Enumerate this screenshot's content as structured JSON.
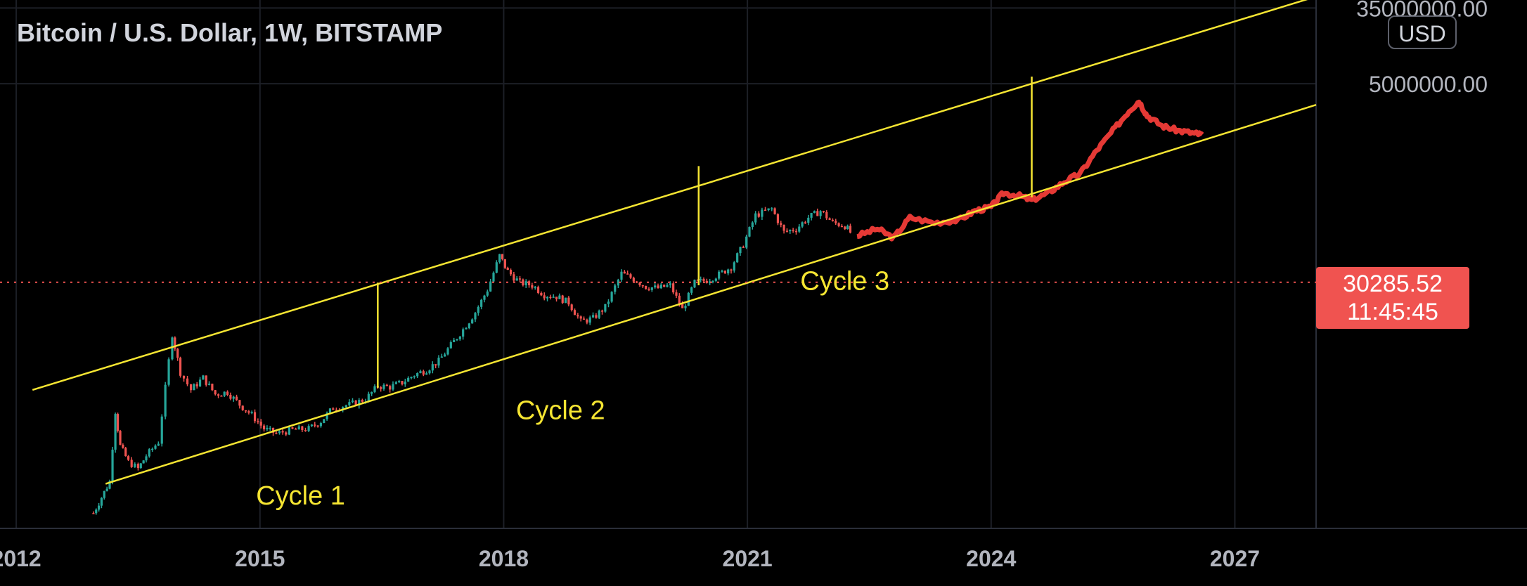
{
  "header": {
    "title": "Bitcoin / U.S. Dollar, 1W, BITSTAMP",
    "currency_badge": "USD"
  },
  "price_scale": {
    "ticks": [
      "35000000.00",
      "5000000.00"
    ]
  },
  "last_price": {
    "value": "30285.52",
    "countdown": "11:45:45"
  },
  "colors": {
    "background": "#000000",
    "grid": "#1c1f26",
    "channel": "#f5e532",
    "candle_up": "#26a69a",
    "candle_down": "#ef5350",
    "projection": "#e53935",
    "price_line": "#f05350",
    "axis_text": "#b2b5be"
  },
  "chart_data": {
    "type": "line",
    "title": "Bitcoin / U.S. Dollar, 1W, BITSTAMP",
    "x_axis": {
      "range": [
        2011.8,
        2028.0
      ],
      "ticks": [
        2012,
        2015,
        2018,
        2021,
        2024,
        2027
      ]
    },
    "y_axis": {
      "scale": "log",
      "range": [
        54,
        43000000
      ],
      "ticks": [
        35000000,
        5000000
      ]
    },
    "current_price": 30285.52,
    "series": [
      {
        "type": "candles",
        "points": [
          [
            2012.95,
            80
          ],
          [
            2013.05,
            120
          ],
          [
            2013.15,
            180
          ],
          [
            2013.22,
            1100
          ],
          [
            2013.28,
            450
          ],
          [
            2013.38,
            300
          ],
          [
            2013.5,
            250
          ],
          [
            2013.6,
            350
          ],
          [
            2013.75,
            500
          ],
          [
            2013.92,
            8000
          ],
          [
            2014.02,
            3000
          ],
          [
            2014.15,
            1900
          ],
          [
            2014.3,
            2600
          ],
          [
            2014.45,
            1700
          ],
          [
            2014.6,
            1800
          ],
          [
            2014.75,
            1300
          ],
          [
            2014.9,
            1000
          ],
          [
            2015.05,
            700
          ],
          [
            2015.2,
            620
          ],
          [
            2015.4,
            680
          ],
          [
            2015.6,
            700
          ],
          [
            2015.75,
            850
          ],
          [
            2015.9,
            1200
          ],
          [
            2016.1,
            1300
          ],
          [
            2016.3,
            1500
          ],
          [
            2016.45,
            2100
          ],
          [
            2016.6,
            2050
          ],
          [
            2016.75,
            2300
          ],
          [
            2016.9,
            2800
          ],
          [
            2017.05,
            3200
          ],
          [
            2017.2,
            4000
          ],
          [
            2017.35,
            6000
          ],
          [
            2017.5,
            9000
          ],
          [
            2017.65,
            14000
          ],
          [
            2017.8,
            25000
          ],
          [
            2017.95,
            60000
          ],
          [
            2018.05,
            40000
          ],
          [
            2018.2,
            30000
          ],
          [
            2018.35,
            28000
          ],
          [
            2018.5,
            22000
          ],
          [
            2018.65,
            21000
          ],
          [
            2018.8,
            18000
          ],
          [
            2018.95,
            11000
          ],
          [
            2019.1,
            12000
          ],
          [
            2019.25,
            16000
          ],
          [
            2019.45,
            38000
          ],
          [
            2019.6,
            33000
          ],
          [
            2019.75,
            27000
          ],
          [
            2019.9,
            26000
          ],
          [
            2020.05,
            28000
          ],
          [
            2020.2,
            15000
          ],
          [
            2020.35,
            30000
          ],
          [
            2020.5,
            32000
          ],
          [
            2020.65,
            37000
          ],
          [
            2020.8,
            45000
          ],
          [
            2020.95,
            80000
          ],
          [
            2021.1,
            170000
          ],
          [
            2021.3,
            200000
          ],
          [
            2021.45,
            110000
          ],
          [
            2021.6,
            120000
          ],
          [
            2021.75,
            160000
          ],
          [
            2021.9,
            190000
          ],
          [
            2022.05,
            140000
          ],
          [
            2022.2,
            130000
          ],
          [
            2022.3,
            100000
          ]
        ]
      },
      {
        "type": "projection",
        "points": [
          [
            2022.35,
            100000
          ],
          [
            2022.6,
            120000
          ],
          [
            2022.8,
            95000
          ],
          [
            2023.0,
            160000
          ],
          [
            2023.3,
            140000
          ],
          [
            2023.6,
            150000
          ],
          [
            2023.8,
            190000
          ],
          [
            2024.0,
            210000
          ],
          [
            2024.15,
            300000
          ],
          [
            2024.35,
            280000
          ],
          [
            2024.5,
            250000
          ],
          [
            2024.7,
            300000
          ],
          [
            2024.9,
            400000
          ],
          [
            2025.1,
            500000
          ],
          [
            2025.3,
            900000
          ],
          [
            2025.5,
            1500000
          ],
          [
            2025.7,
            2500000
          ],
          [
            2025.82,
            3200000
          ],
          [
            2025.92,
            2200000
          ],
          [
            2026.1,
            1700000
          ],
          [
            2026.3,
            1500000
          ],
          [
            2026.5,
            1400000
          ],
          [
            2026.6,
            1350000
          ]
        ]
      }
    ],
    "channel_lines": [
      {
        "from": [
          2012.2,
          1900
        ],
        "to": [
          2028.0,
          47000000
        ]
      },
      {
        "from": [
          2013.1,
          170
        ],
        "to": [
          2028.0,
          2900000
        ]
      }
    ],
    "cycle_dividers": [
      {
        "x": 2016.45,
        "y_low": 2000,
        "y_high": 30000
      },
      {
        "x": 2020.4,
        "y_low": 28000,
        "y_high": 600000
      },
      {
        "x": 2024.5,
        "y_low": 270000,
        "y_high": 6000000
      }
    ],
    "annotations": [
      {
        "text": "Cycle 1",
        "x": 2015.5,
        "y": 100
      },
      {
        "text": "Cycle 2",
        "x": 2018.7,
        "y": 900
      },
      {
        "text": "Cycle 3",
        "x": 2022.2,
        "y": 25000
      }
    ]
  }
}
